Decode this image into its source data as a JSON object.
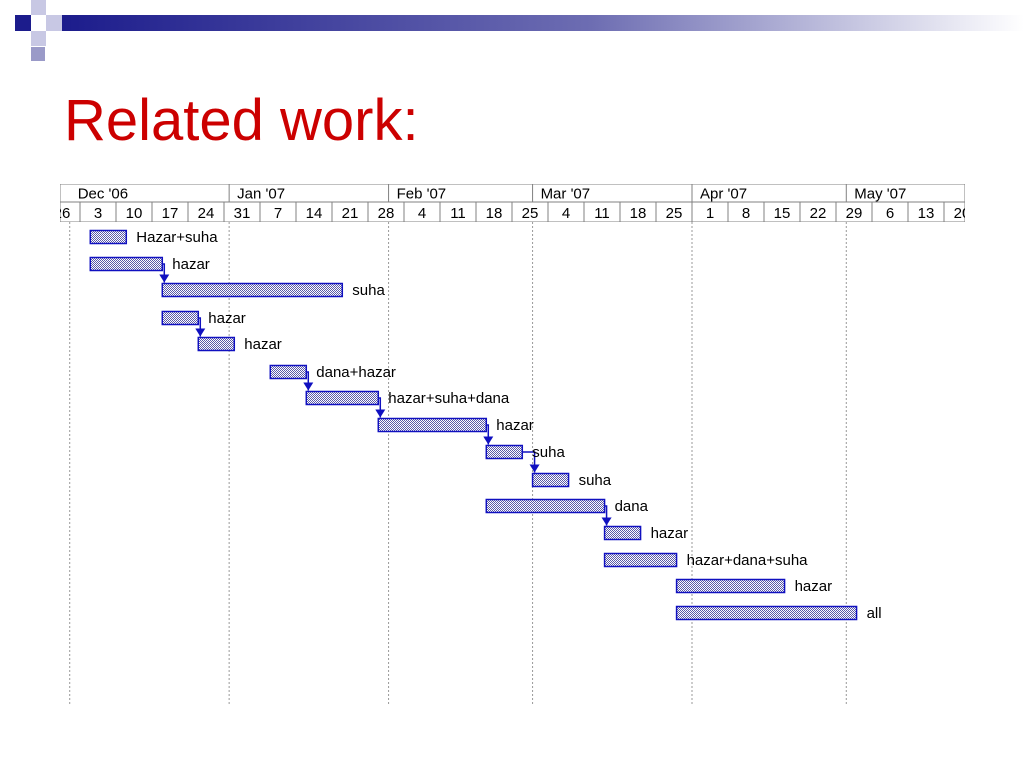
{
  "slide": {
    "title": "Related work:",
    "title_color": "#cc0000",
    "accent_color": "#1c1c8c"
  },
  "chart_data": {
    "type": "gantt",
    "colors": {
      "bar_border": "#1010c0",
      "bar_fill": "#d4d4e8",
      "dependency_arrow": "#1010c0",
      "gridline": "#999999"
    },
    "months": [
      "Dec '06",
      "Jan '07",
      "Feb '07",
      "Mar '07",
      "Apr '07",
      "May '07"
    ],
    "week_ticks": [
      "3",
      "10",
      "17",
      "24",
      "31",
      "7",
      "14",
      "21",
      "28",
      "4",
      "11",
      "18",
      "25",
      "4",
      "11",
      "18",
      "25",
      "1",
      "8",
      "15",
      "22",
      "29",
      "6",
      "13",
      "20"
    ],
    "week_dates": [
      "2006-12-03",
      "2006-12-10",
      "2006-12-17",
      "2006-12-24",
      "2006-12-31",
      "2007-01-07",
      "2007-01-14",
      "2007-01-21",
      "2007-01-28",
      "2007-02-04",
      "2007-02-11",
      "2007-02-18",
      "2007-02-25",
      "2007-03-04",
      "2007-03-11",
      "2007-03-18",
      "2007-03-25",
      "2007-04-01",
      "2007-04-08",
      "2007-04-15",
      "2007-04-22",
      "2007-04-29",
      "2007-05-06",
      "2007-05-13",
      "2007-05-20"
    ],
    "tasks": [
      {
        "label": "Hazar+suha",
        "start": "2006-12-05",
        "end": "2006-12-12"
      },
      {
        "label": "hazar",
        "start": "2006-12-05",
        "end": "2006-12-19",
        "successor": 2
      },
      {
        "label": "suha",
        "start": "2006-12-19",
        "end": "2007-01-23"
      },
      {
        "label": "hazar",
        "start": "2006-12-19",
        "end": "2006-12-26",
        "successor": 4
      },
      {
        "label": "hazar",
        "start": "2006-12-26",
        "end": "2007-01-02"
      },
      {
        "label": "dana+hazar",
        "start": "2007-01-09",
        "end": "2007-01-16",
        "successor": 6
      },
      {
        "label": "hazar+suha+dana",
        "start": "2007-01-16",
        "end": "2007-01-30",
        "successor": 7
      },
      {
        "label": "hazar",
        "start": "2007-01-30",
        "end": "2007-02-20",
        "successor": 8
      },
      {
        "label": "suha",
        "start": "2007-02-20",
        "end": "2007-02-27",
        "successor": 9
      },
      {
        "label": "suha",
        "start": "2007-03-01",
        "end": "2007-03-08"
      },
      {
        "label": "dana",
        "start": "2007-02-20",
        "end": "2007-03-15",
        "successor": 11
      },
      {
        "label": "hazar",
        "start": "2007-03-15",
        "end": "2007-03-22"
      },
      {
        "label": "hazar+dana+suha",
        "start": "2007-03-15",
        "end": "2007-03-29"
      },
      {
        "label": "hazar",
        "start": "2007-03-29",
        "end": "2007-04-19"
      },
      {
        "label": "all",
        "start": "2007-03-29",
        "end": "2007-05-03"
      }
    ]
  }
}
